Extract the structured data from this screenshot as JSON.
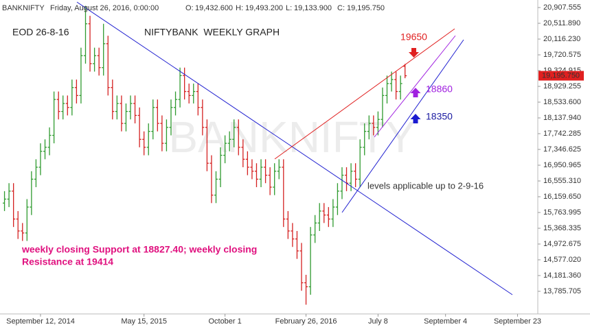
{
  "chart_data": {
    "type": "ohlc",
    "symbol": "BANKNIFTY",
    "datetime": "Friday, August 26, 2016, 0:00:00",
    "ohlc_header": [
      {
        "key": "O:",
        "value": "19,432.600"
      },
      {
        "key": "H:",
        "value": "19,493.200"
      },
      {
        "key": "L:",
        "value": "19,133.900"
      },
      {
        "key": "C:",
        "value": "19,195.750"
      }
    ],
    "last_label": "19,195.750",
    "title": "NIFTYBANK  WEEKLY GRAPH",
    "date_note": "EOD 26-8-16",
    "watermark": "BANKNIFTY",
    "annotations": {
      "resistance_level": "19650",
      "mid_level": "18860",
      "support_level": "18350",
      "validity": "levels applicable up to 2-9-16",
      "note_line1": "weekly closing Support at 18827.40; weekly closing",
      "note_line2": "Resistance at 19414"
    },
    "up_color": "#2e9a2e",
    "down_color": "#d42020",
    "open": [
      16000,
      16100,
      16300,
      15600,
      15300,
      15250,
      15900,
      16600,
      16900,
      17300,
      17400,
      17700,
      18600,
      18300,
      18500,
      18400,
      18900,
      18700,
      19700,
      20500,
      19500,
      19700,
      19400,
      20000,
      18900,
      18300,
      18500,
      18000,
      18300,
      18500,
      18200,
      17600,
      17400,
      17800,
      18400,
      18000,
      17500,
      17900,
      18400,
      18600,
      19200,
      18800,
      18700,
      18800,
      18400,
      17900,
      17000,
      16200,
      16600,
      17200,
      17500,
      17600,
      17900,
      17400,
      17100,
      16900,
      16800,
      16600,
      16900,
      16700,
      16400,
      16800,
      16900,
      15600,
      15300,
      15100,
      14800,
      14000,
      13900,
      15200,
      15500,
      15800,
      15700,
      15600,
      15900,
      16300,
      16700,
      16500,
      16800,
      16600,
      17400,
      17800,
      18000,
      17900,
      18100,
      18700,
      19000,
      19100,
      18800,
      19432.6
    ],
    "high": [
      16300,
      16500,
      16500,
      15800,
      15500,
      16100,
      16800,
      17100,
      17500,
      17600,
      17900,
      18800,
      18800,
      18700,
      18700,
      19100,
      19100,
      19900,
      20950,
      20700,
      19900,
      19900,
      20500,
      20200,
      19100,
      18700,
      18700,
      18500,
      18700,
      18700,
      18400,
      17800,
      18000,
      18600,
      18600,
      18200,
      18100,
      18600,
      18800,
      19400,
      19400,
      19000,
      19000,
      19000,
      18600,
      18100,
      17200,
      16800,
      17400,
      17700,
      17800,
      18100,
      18100,
      17600,
      17300,
      17100,
      17000,
      17100,
      17100,
      16900,
      17000,
      17100,
      17100,
      15800,
      15500,
      15300,
      15000,
      14200,
      15400,
      15700,
      16000,
      16000,
      15900,
      16100,
      16500,
      16900,
      16900,
      17000,
      17000,
      17600,
      18000,
      18200,
      18200,
      18300,
      18900,
      19200,
      19300,
      19300,
      19200,
      19493.2
    ],
    "low": [
      15800,
      15900,
      15400,
      15100,
      15050,
      15050,
      15700,
      16400,
      16700,
      17100,
      17200,
      17500,
      18100,
      18100,
      18200,
      18200,
      18500,
      18500,
      19500,
      19300,
      19300,
      19200,
      19200,
      18700,
      18100,
      18100,
      17800,
      17800,
      18100,
      18000,
      17400,
      17200,
      17200,
      17600,
      17800,
      17300,
      17300,
      17700,
      18200,
      18400,
      18600,
      18500,
      18500,
      18200,
      17700,
      16800,
      16000,
      16000,
      16400,
      17000,
      17300,
      17400,
      17200,
      16900,
      16700,
      16600,
      16400,
      16400,
      16500,
      16200,
      16200,
      16600,
      15400,
      15100,
      14900,
      14600,
      13800,
      13450,
      13700,
      15000,
      15300,
      15500,
      15400,
      15400,
      15700,
      16100,
      16300,
      16300,
      16400,
      16400,
      17200,
      17600,
      17700,
      17700,
      17900,
      18500,
      18800,
      18600,
      18600,
      19133.9
    ],
    "close": [
      16100,
      16300,
      15600,
      15300,
      15250,
      15900,
      16600,
      16900,
      17300,
      17400,
      17700,
      18600,
      18300,
      18500,
      18400,
      18900,
      18700,
      19700,
      20500,
      19500,
      19700,
      19400,
      20000,
      18900,
      18300,
      18500,
      18000,
      18300,
      18500,
      18200,
      17600,
      17400,
      17800,
      18400,
      18000,
      17500,
      17900,
      18400,
      18600,
      19200,
      18800,
      18700,
      18800,
      18400,
      17900,
      17000,
      16200,
      16600,
      17200,
      17500,
      17600,
      17900,
      17400,
      17100,
      16900,
      16800,
      16600,
      16900,
      16700,
      16400,
      16800,
      16900,
      15600,
      15300,
      15100,
      14800,
      14000,
      13900,
      15200,
      15500,
      15800,
      15700,
      15600,
      15900,
      16300,
      16700,
      16500,
      16800,
      16600,
      17400,
      17800,
      18000,
      17900,
      18100,
      18700,
      19000,
      19100,
      18800,
      19000,
      19195.75
    ],
    "xlim": [
      -1,
      118.5
    ],
    "xticks": [
      {
        "value": 8,
        "label": "September 12, 2014"
      },
      {
        "value": 31,
        "label": "May 15, 2015"
      },
      {
        "value": 49,
        "label": "October 1"
      },
      {
        "value": 67,
        "label": "February 26, 2016"
      },
      {
        "value": 83,
        "label": "July 8"
      },
      {
        "value": 98,
        "label": "September 4"
      },
      {
        "value": 114,
        "label": "September 23"
      }
    ],
    "ylim": [
      13270,
      21097
    ],
    "yticks": [
      {
        "value": 20907.555,
        "label": "20,907.555"
      },
      {
        "value": 20511.89,
        "label": "20,511.890"
      },
      {
        "value": 20116.23,
        "label": "20,116.230"
      },
      {
        "value": 19720.575,
        "label": "19,720.575"
      },
      {
        "value": 19324.915,
        "label": "19,324.915"
      },
      {
        "value": 18929.255,
        "label": "18,929.255"
      },
      {
        "value": 18533.6,
        "label": "18,533.600"
      },
      {
        "value": 18137.94,
        "label": "18,137.940"
      },
      {
        "value": 17742.285,
        "label": "17,742.285"
      },
      {
        "value": 17346.625,
        "label": "17,346.625"
      },
      {
        "value": 16950.965,
        "label": "16,950.965"
      },
      {
        "value": 16555.31,
        "label": "16,555.310"
      },
      {
        "value": 16159.65,
        "label": "16,159.650"
      },
      {
        "value": 15763.995,
        "label": "15,763.995"
      },
      {
        "value": 15368.335,
        "label": "15,368.335"
      },
      {
        "value": 14972.675,
        "label": "14,972.675"
      },
      {
        "value": 14577.02,
        "label": "14,577.020"
      },
      {
        "value": 14181.36,
        "label": "14,181.360"
      },
      {
        "value": 13785.705,
        "label": "13,785.705"
      }
    ]
  }
}
